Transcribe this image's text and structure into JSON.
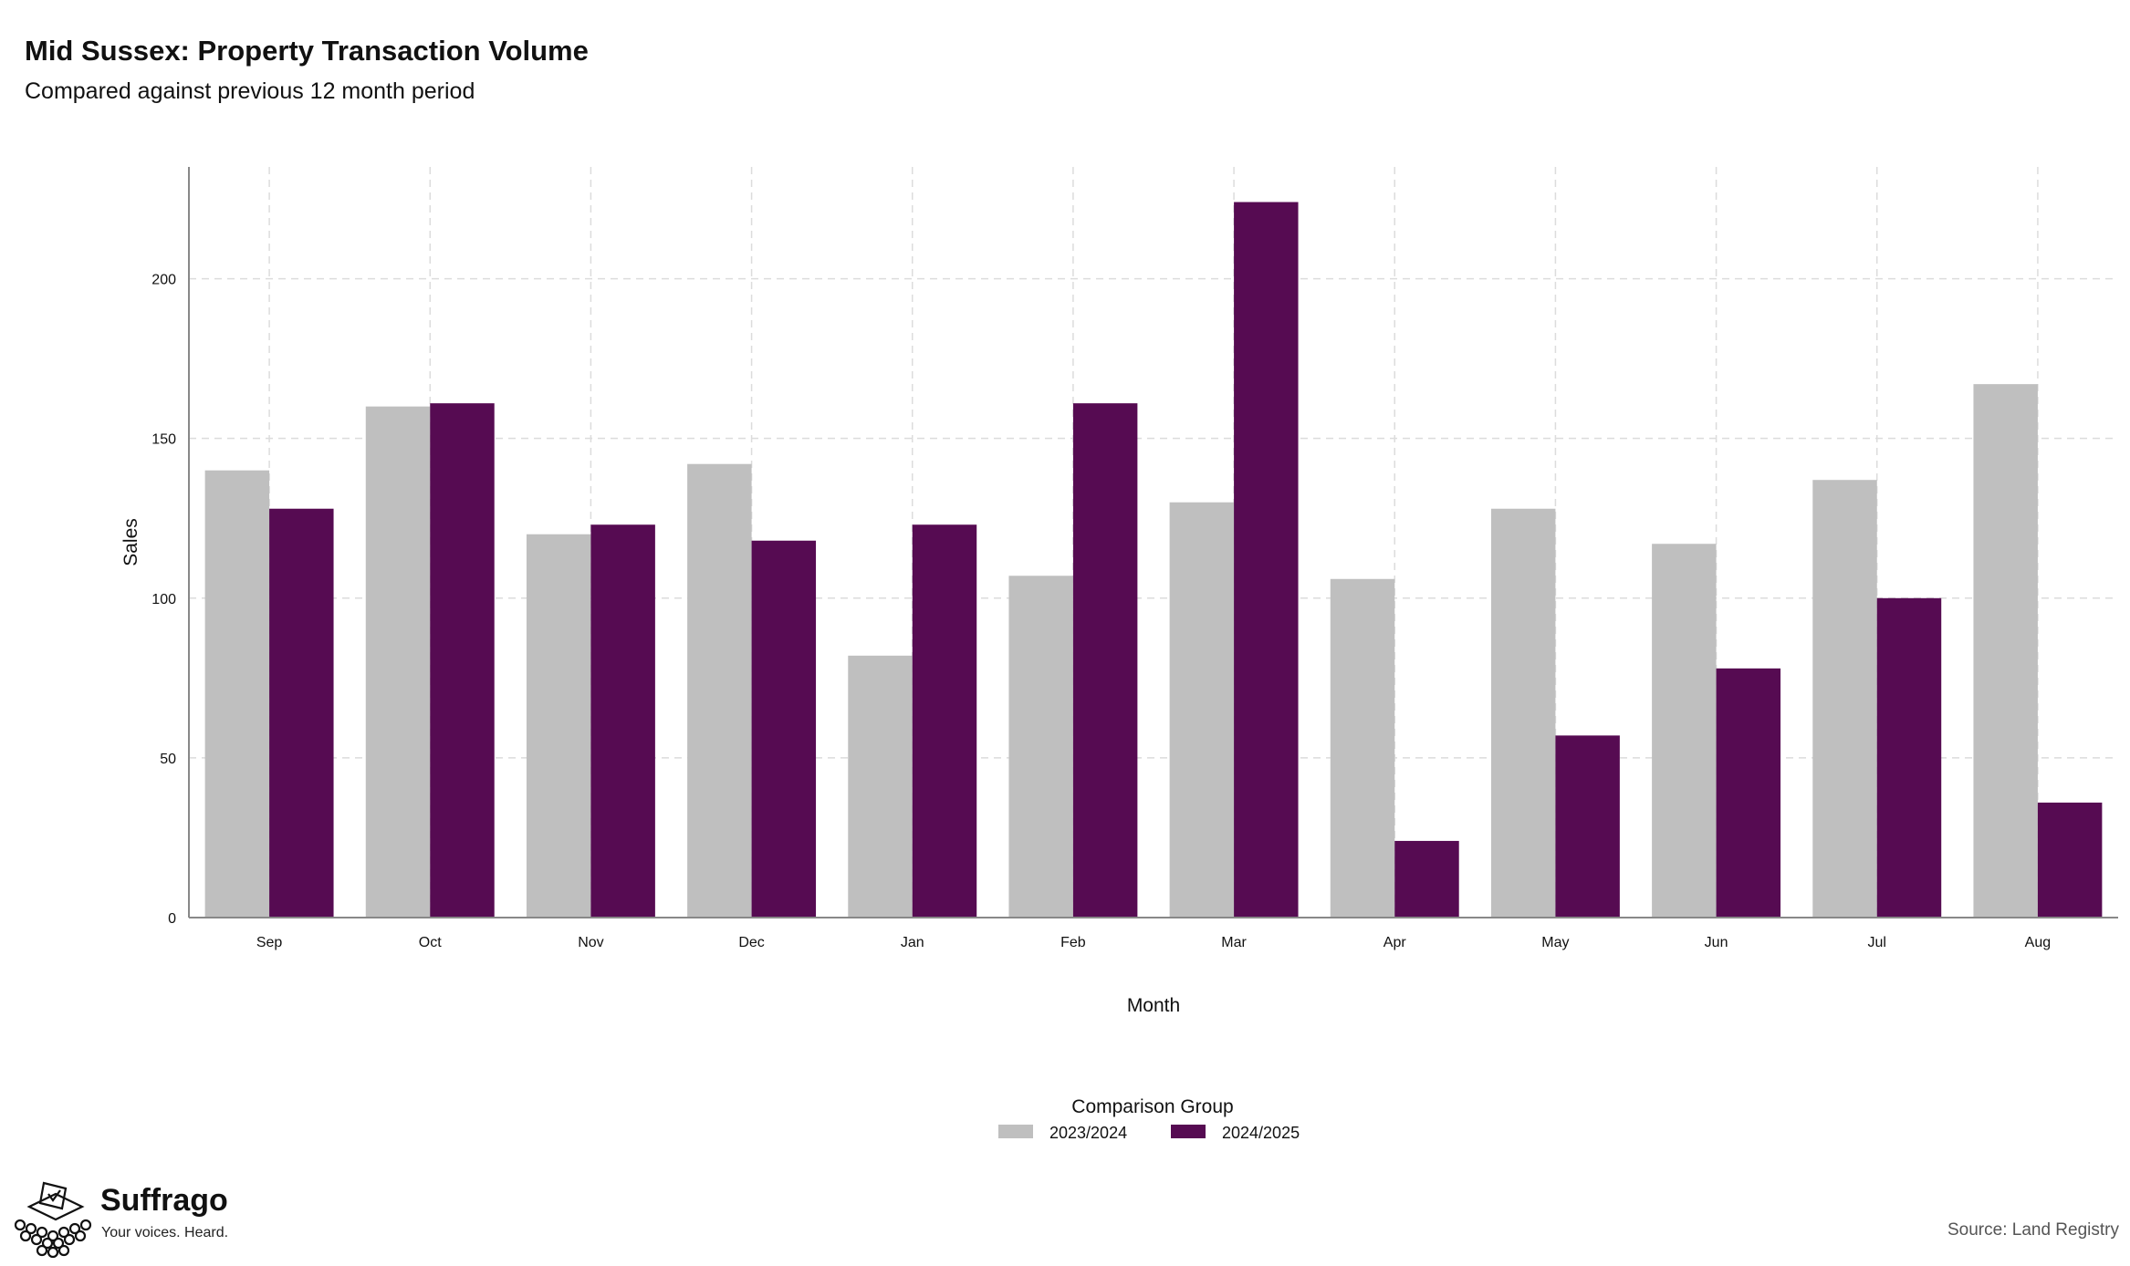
{
  "header": {
    "title": "Mid Sussex: Property Transaction Volume",
    "subtitle": "Compared against previous 12 month period"
  },
  "footer": {
    "source": "Source: Land Registry",
    "brand": "Suffrago",
    "tagline": "Your voices. Heard."
  },
  "chart_data": {
    "type": "bar",
    "title": "Mid Sussex: Property Transaction Volume",
    "subtitle": "Compared against previous 12 month period",
    "xlabel": "Month",
    "ylabel": "Sales",
    "ylim": [
      0,
      235
    ],
    "yticks": [
      0,
      50,
      100,
      150,
      200
    ],
    "grid": true,
    "legend": {
      "title": "Comparison Group",
      "position": "bottom-center"
    },
    "categories": [
      "Sep",
      "Oct",
      "Nov",
      "Dec",
      "Jan",
      "Feb",
      "Mar",
      "Apr",
      "May",
      "Jun",
      "Jul",
      "Aug"
    ],
    "series": [
      {
        "name": "2023/2024",
        "color": "#bfbfbf",
        "values": [
          140,
          160,
          120,
          142,
          82,
          107,
          130,
          106,
          128,
          117,
          137,
          167
        ]
      },
      {
        "name": "2024/2025",
        "color": "#560b52",
        "values": [
          128,
          161,
          123,
          118,
          123,
          161,
          224,
          24,
          57,
          78,
          100,
          36
        ]
      }
    ]
  }
}
